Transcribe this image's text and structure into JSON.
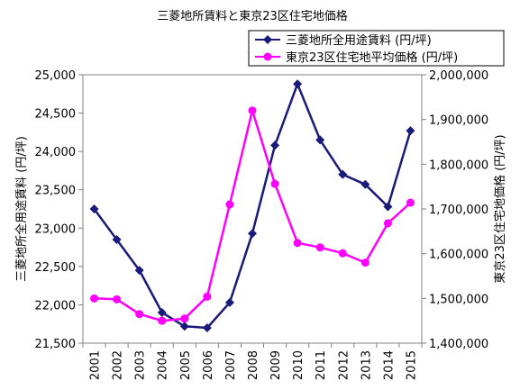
{
  "chart_data": {
    "type": "line",
    "title": "三菱地所賃料と東京23区住宅地価格",
    "x": [
      "2001",
      "2002",
      "2003",
      "2004",
      "2005",
      "2006",
      "2007",
      "2008",
      "2009",
      "2010",
      "2011",
      "2012",
      "2013",
      "2014",
      "2015"
    ],
    "ylabel_left": "三菱地所全用途賃料 (円/坪)",
    "ylabel_right": "東京23区住宅地価格 (円/坪)",
    "ylim_left": [
      21500,
      25000
    ],
    "ylim_right": [
      1400000,
      2000000
    ],
    "yticks_left": [
      "21,500",
      "22,000",
      "22,500",
      "23,000",
      "23,500",
      "24,000",
      "24,500",
      "25,000"
    ],
    "yticks_right": [
      "1,400,000",
      "1,500,000",
      "1,600,000",
      "1,700,000",
      "1,800,000",
      "1,900,000",
      "2,000,000"
    ],
    "grid": false,
    "legend_position": "top-right",
    "series": [
      {
        "name": "三菱地所全用途賃料 (円/坪)",
        "axis": "left",
        "color": "#1a1a7a",
        "marker": "diamond",
        "values": [
          23250,
          22850,
          22450,
          21900,
          21720,
          21700,
          22030,
          22930,
          24080,
          24880,
          24150,
          23700,
          23570,
          23280,
          24270
        ]
      },
      {
        "name": "東京23区住宅地平均価格 (円/坪)",
        "axis": "right",
        "color": "#ff00ff",
        "marker": "circle",
        "values": [
          1500000,
          1498000,
          1465000,
          1450000,
          1455000,
          1504000,
          1710000,
          1920000,
          1756000,
          1624000,
          1614000,
          1601000,
          1580000,
          1668000,
          1714000
        ]
      }
    ]
  }
}
